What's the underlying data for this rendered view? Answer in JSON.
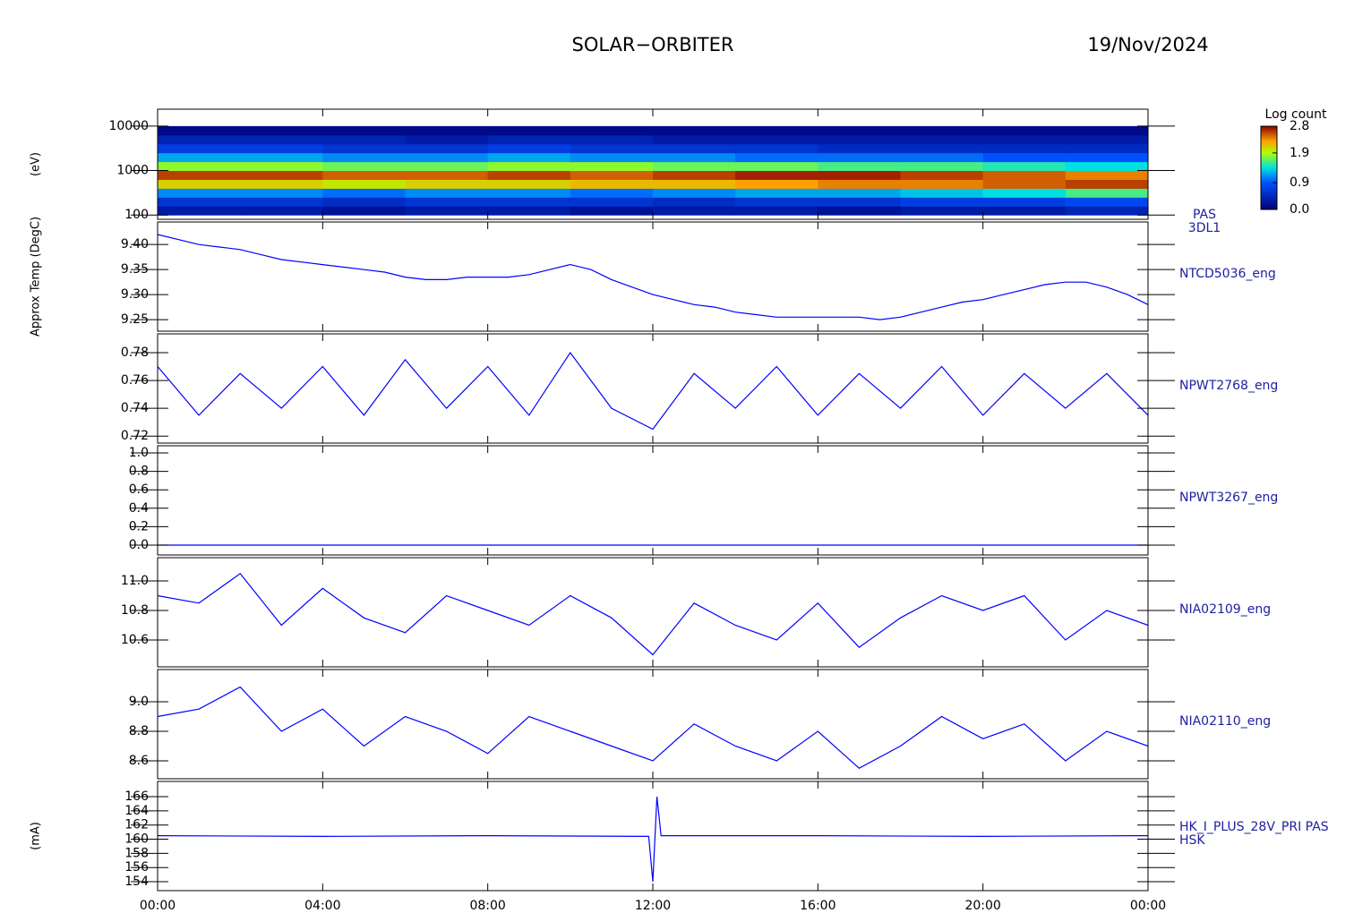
{
  "header": {
    "title": "SOLAR−ORBITER",
    "date": "19/Nov/2024"
  },
  "chart_data": [
    {
      "type": "heatmap",
      "label": [
        "PAS",
        "3DL1"
      ],
      "ylabel": "(eV)",
      "log_y": true,
      "ylim": [
        80,
        24000
      ],
      "yticks": [
        100,
        1000,
        10000
      ],
      "xlim": [
        0,
        24
      ],
      "time_bins": [
        0,
        2,
        4,
        6,
        8,
        10,
        12,
        14,
        16,
        18,
        20,
        22,
        24
      ],
      "energy_bins": [
        100,
        158,
        251,
        398,
        631,
        1000,
        1585,
        2512,
        3981,
        6310,
        10000
      ],
      "z": [
        [
          0.3,
          0.3,
          0.2,
          0.3,
          0.3,
          0.2,
          0.3,
          0.3,
          0.2,
          0.3,
          0.3,
          0.4
        ],
        [
          0.6,
          0.6,
          0.5,
          0.6,
          0.6,
          0.6,
          0.5,
          0.6,
          0.6,
          0.7,
          0.7,
          0.8
        ],
        [
          1.1,
          1.1,
          1.0,
          1.1,
          1.1,
          1.0,
          1.1,
          1.2,
          1.2,
          1.3,
          1.4,
          1.6
        ],
        [
          2.1,
          2.1,
          2.0,
          2.1,
          2.1,
          2.2,
          2.2,
          2.3,
          2.4,
          2.4,
          2.5,
          2.6
        ],
        [
          2.6,
          2.6,
          2.5,
          2.5,
          2.6,
          2.5,
          2.6,
          2.7,
          2.7,
          2.6,
          2.5,
          2.4
        ],
        [
          1.8,
          1.8,
          1.7,
          1.7,
          1.8,
          1.8,
          1.7,
          1.7,
          1.6,
          1.6,
          1.5,
          1.4
        ],
        [
          1.2,
          1.2,
          1.1,
          1.1,
          1.2,
          1.1,
          1.1,
          1.0,
          1.0,
          1.0,
          0.9,
          0.9
        ],
        [
          0.7,
          0.7,
          0.6,
          0.6,
          0.7,
          0.6,
          0.6,
          0.6,
          0.5,
          0.5,
          0.5,
          0.5
        ],
        [
          0.4,
          0.4,
          0.4,
          0.3,
          0.4,
          0.4,
          0.3,
          0.3,
          0.3,
          0.3,
          0.3,
          0.3
        ],
        [
          0.1,
          0.1,
          0.1,
          0.1,
          0.1,
          0.1,
          0.1,
          0.1,
          0.1,
          0.1,
          0.1,
          0.1
        ]
      ],
      "colorbar": {
        "title": "Log count",
        "zlim": [
          0,
          2.8
        ],
        "ticks": [
          {
            "value": 0,
            "label": "0.0"
          },
          0.9,
          1.9,
          2.8
        ],
        "colors": [
          [
            0,
            "#000078"
          ],
          [
            0.9,
            "#0050ff"
          ],
          [
            1.4,
            "#00e0e0"
          ],
          [
            1.9,
            "#b0ff00"
          ],
          [
            2.3,
            "#ffa000"
          ],
          [
            2.8,
            "#8c0000"
          ]
        ]
      }
    },
    {
      "type": "line",
      "label": [
        "NTCD5036_eng"
      ],
      "ylabel": "Approx Temp (DegC)",
      "ylim": [
        9.227,
        9.445
      ],
      "yticks": [
        9.25,
        {
          "value": 9.3,
          "label": "9.30"
        },
        9.35,
        {
          "value": 9.4,
          "label": "9.40"
        }
      ],
      "xlim": [
        0,
        24
      ],
      "x": [
        0,
        0.5,
        1,
        1.5,
        2,
        2.5,
        3,
        3.5,
        4,
        4.5,
        5,
        5.5,
        6,
        6.5,
        7,
        7.5,
        8,
        8.5,
        9,
        9.5,
        10,
        10.5,
        11,
        11.5,
        12,
        12.5,
        13,
        13.5,
        14,
        14.5,
        15,
        15.5,
        16,
        16.5,
        17,
        17.5,
        18,
        18.5,
        19,
        19.5,
        20,
        20.5,
        21,
        21.5,
        22,
        22.5,
        23,
        23.5,
        24
      ],
      "series": [
        {
          "color": "#0000ff",
          "values": [
            9.42,
            9.41,
            9.4,
            9.395,
            9.39,
            9.38,
            9.37,
            9.365,
            9.36,
            9.355,
            9.35,
            9.345,
            9.335,
            9.33,
            9.33,
            9.335,
            9.335,
            9.335,
            9.34,
            9.35,
            9.36,
            9.35,
            9.33,
            9.315,
            9.3,
            9.29,
            9.28,
            9.275,
            9.265,
            9.26,
            9.255,
            9.255,
            9.255,
            9.255,
            9.255,
            9.25,
            9.255,
            9.265,
            9.275,
            9.285,
            9.29,
            9.3,
            9.31,
            9.32,
            9.325,
            9.325,
            9.315,
            9.3,
            9.28
          ]
        }
      ]
    },
    {
      "type": "line",
      "label": [
        "NPWT2768_eng"
      ],
      "ylim": [
        0.715,
        0.7935
      ],
      "yticks": [
        0.72,
        0.74,
        0.76,
        0.78
      ],
      "xlim": [
        0,
        24
      ],
      "x": [
        0,
        1,
        2,
        3,
        4,
        5,
        6,
        7,
        8,
        9,
        10,
        11,
        12,
        13,
        14,
        15,
        16,
        17,
        18,
        19,
        20,
        21,
        22,
        23,
        24
      ],
      "series": [
        {
          "color": "#0000ff",
          "values": [
            0.77,
            0.735,
            0.765,
            0.74,
            0.77,
            0.735,
            0.775,
            0.74,
            0.77,
            0.735,
            0.78,
            0.74,
            0.725,
            0.765,
            0.74,
            0.77,
            0.735,
            0.765,
            0.74,
            0.77,
            0.735,
            0.765,
            0.74,
            0.765,
            0.735
          ]
        }
      ]
    },
    {
      "type": "line",
      "label": [
        "NPWT3267_eng"
      ],
      "ylim": [
        -0.107,
        1.078
      ],
      "yticks": [
        {
          "value": 0,
          "label": "0.0"
        },
        0.2,
        0.4,
        0.6,
        0.8,
        {
          "value": 1,
          "label": "1.0"
        }
      ],
      "xlim": [
        0,
        24
      ],
      "x": [
        0,
        24
      ],
      "series": [
        {
          "color": "#0000ff",
          "values": [
            0,
            0
          ]
        }
      ]
    },
    {
      "type": "line",
      "label": [
        "NIA02109_eng"
      ],
      "ylim": [
        10.418,
        11.158
      ],
      "yticks": [
        10.6,
        10.8,
        {
          "value": 11,
          "label": "11.0"
        }
      ],
      "xlim": [
        0,
        24
      ],
      "x": [
        0,
        1,
        2,
        3,
        4,
        5,
        6,
        7,
        8,
        9,
        10,
        11,
        12,
        13,
        14,
        15,
        16,
        17,
        18,
        19,
        20,
        21,
        22,
        23,
        24
      ],
      "series": [
        {
          "color": "#0000ff",
          "values": [
            10.9,
            10.85,
            11.05,
            10.7,
            10.95,
            10.75,
            10.65,
            10.9,
            10.8,
            10.7,
            10.9,
            10.75,
            10.5,
            10.85,
            10.7,
            10.6,
            10.85,
            10.55,
            10.75,
            10.9,
            10.8,
            10.9,
            10.6,
            10.8,
            10.7
          ]
        }
      ]
    },
    {
      "type": "line",
      "label": [
        "NIA02110_eng"
      ],
      "ylim": [
        8.479,
        9.218
      ],
      "yticks": [
        8.6,
        8.8,
        {
          "value": 9,
          "label": "9.0"
        }
      ],
      "xlim": [
        0,
        24
      ],
      "x": [
        0,
        1,
        2,
        3,
        4,
        5,
        6,
        7,
        8,
        9,
        10,
        11,
        12,
        13,
        14,
        15,
        16,
        17,
        18,
        19,
        20,
        21,
        22,
        23,
        24
      ],
      "series": [
        {
          "color": "#0000ff",
          "values": [
            8.9,
            8.95,
            9.1,
            8.8,
            8.95,
            8.7,
            8.9,
            8.8,
            8.65,
            8.9,
            8.8,
            8.7,
            8.6,
            8.85,
            8.7,
            8.6,
            8.8,
            8.55,
            8.7,
            8.9,
            8.75,
            8.85,
            8.6,
            8.8,
            8.7
          ]
        }
      ]
    },
    {
      "type": "line",
      "label": [
        "HK_I_PLUS_28V_PRI PAS",
        "HSK"
      ],
      "ylabel": "(mA)",
      "ylim": [
        152.74,
        168.15
      ],
      "yticks": [
        154,
        156,
        158,
        160,
        162,
        164,
        166
      ],
      "xlim": [
        0,
        24
      ],
      "x": [
        0,
        4,
        8,
        11.9,
        12,
        12.1,
        12.2,
        16,
        20,
        24
      ],
      "series": [
        {
          "color": "#0000ff",
          "values": [
            160.5,
            160.4,
            160.5,
            160.4,
            154,
            166,
            160.5,
            160.5,
            160.4,
            160.5
          ]
        }
      ],
      "xticks": [
        {
          "value": 0,
          "label": "00:00"
        },
        {
          "value": 4,
          "label": "04:00"
        },
        {
          "value": 8,
          "label": "08:00"
        },
        {
          "value": 12,
          "label": "12:00"
        },
        {
          "value": 16,
          "label": "16:00"
        },
        {
          "value": 20,
          "label": "20:00"
        },
        {
          "value": 24,
          "label": "00:00"
        }
      ]
    }
  ]
}
